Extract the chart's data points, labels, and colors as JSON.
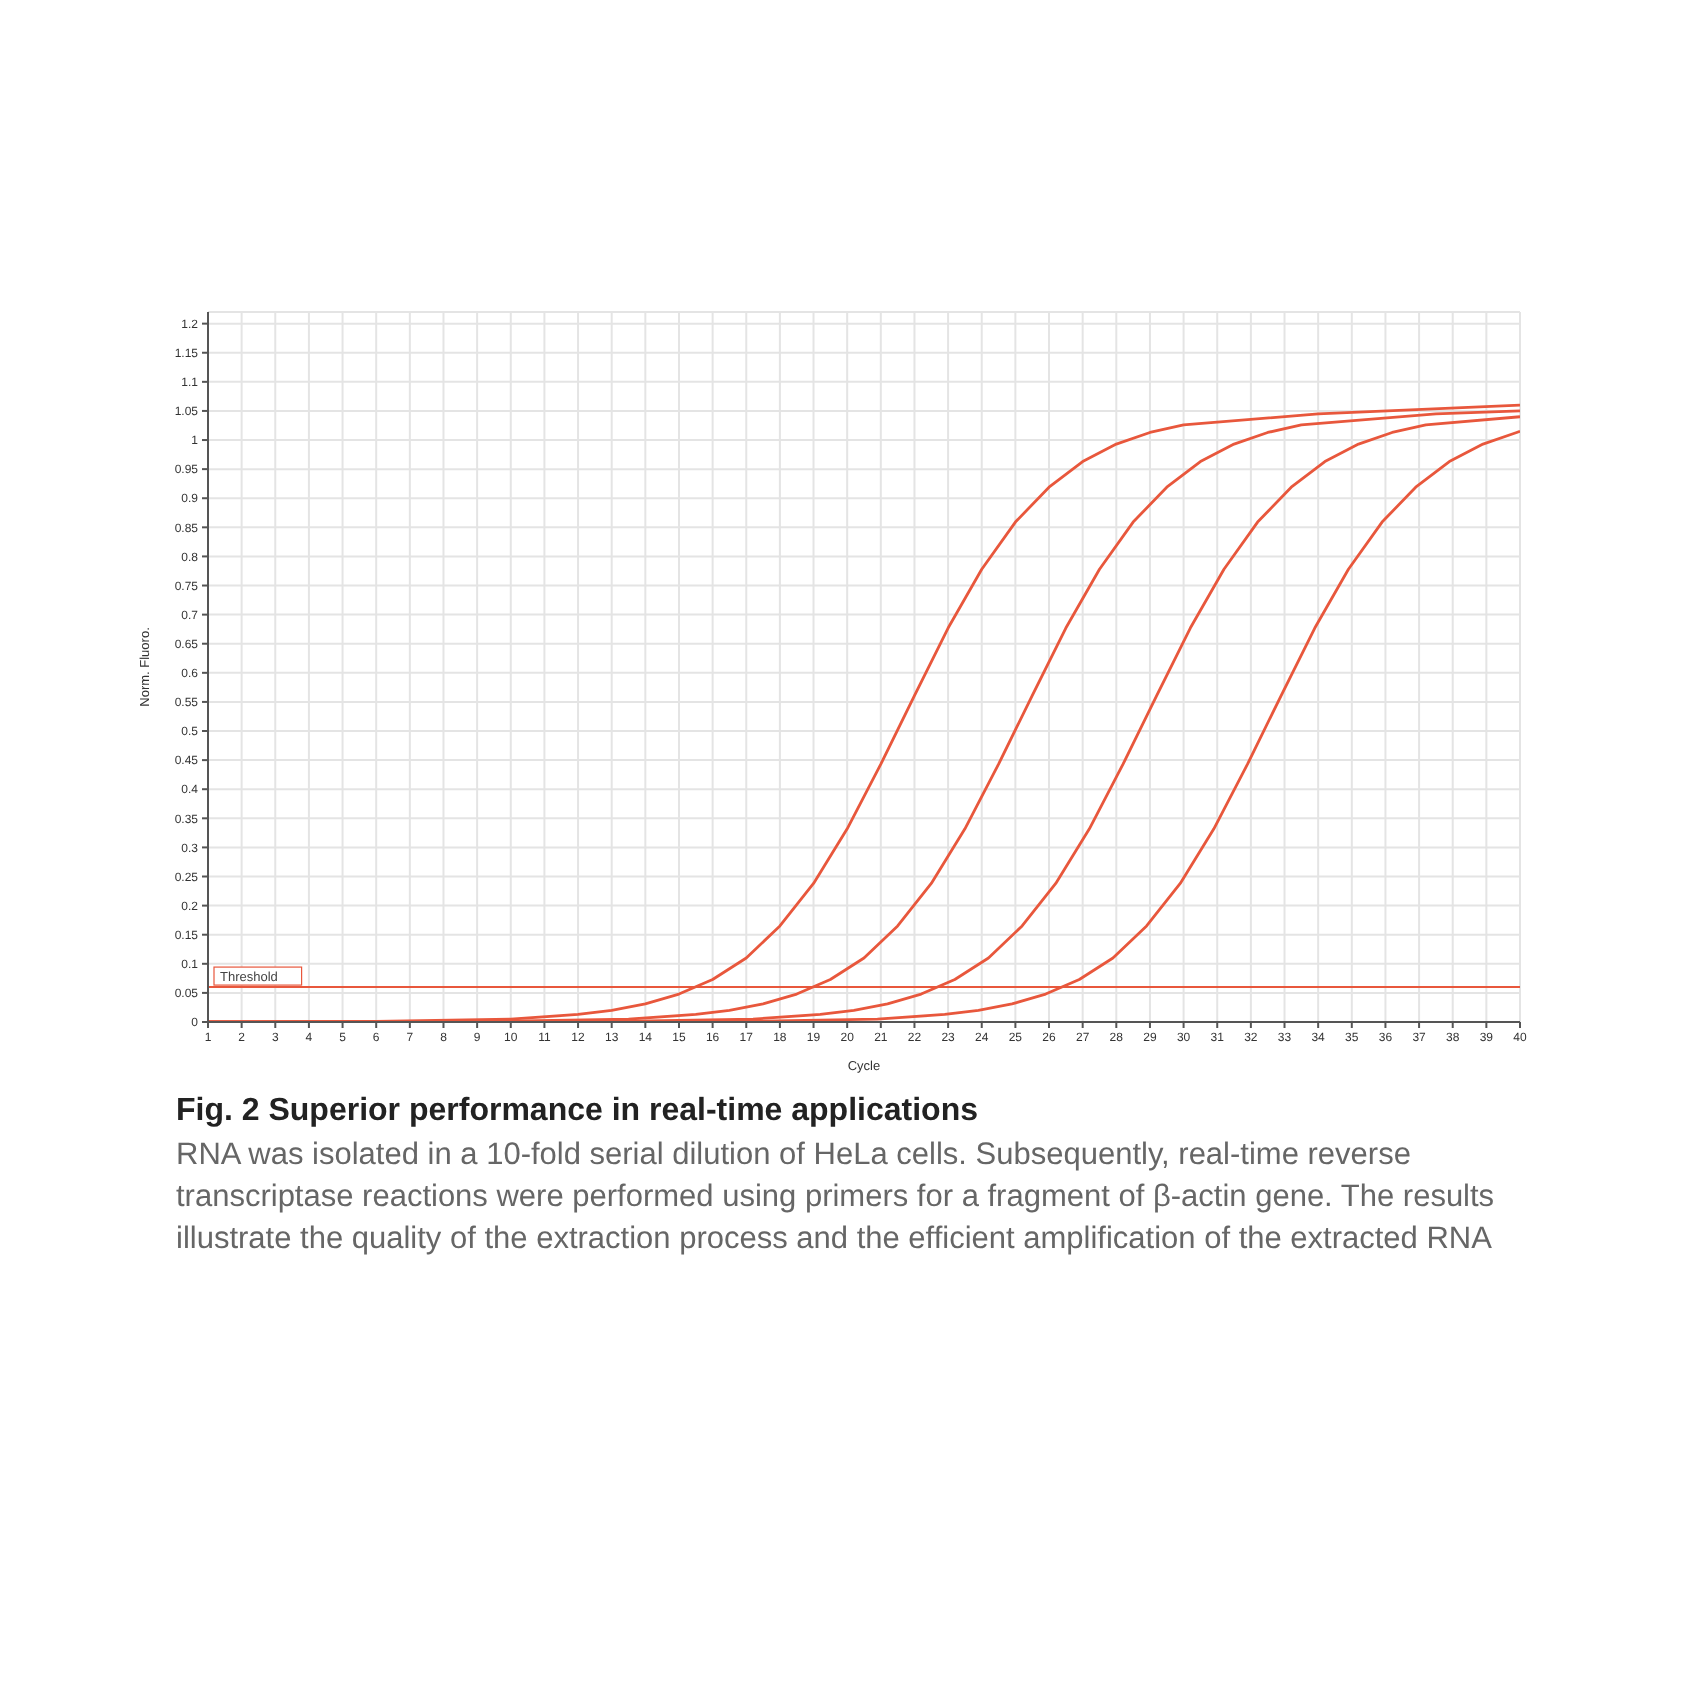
{
  "chart_data": {
    "type": "line",
    "title": "Fig. 2 Superior performance in real-time applications",
    "xlabel": "Cycle",
    "ylabel": "Norm. Fluoro.",
    "annotations": [
      "RNA was isolated in a 10-fold serial dilution of HeLa cells. Subsequently, real-time reverse transcriptase reactions were performed using primers for a fragment of β-actin gene. The results illustrate the quality of the extraction process and the efficient amplification of the extracted RNA"
    ],
    "xlim": [
      1,
      40
    ],
    "xticks": [
      1,
      2,
      3,
      4,
      5,
      6,
      7,
      8,
      9,
      10,
      11,
      12,
      13,
      14,
      15,
      16,
      17,
      18,
      19,
      20,
      21,
      22,
      23,
      24,
      25,
      26,
      27,
      28,
      29,
      30,
      31,
      32,
      33,
      34,
      35,
      36,
      37,
      38,
      39,
      40
    ],
    "ylim": [
      0,
      1.22
    ],
    "yticks": [
      0,
      0.05,
      0.1,
      0.15,
      0.2,
      0.25,
      0.3,
      0.35,
      0.4,
      0.45,
      0.5,
      0.55,
      0.6,
      0.65,
      0.7,
      0.75,
      0.8,
      0.85,
      0.9,
      0.95,
      1,
      1.05,
      1.1,
      1.15,
      1.2
    ],
    "grid": true,
    "legend": false,
    "marker": "none",
    "line_style": "solid",
    "ref_lines": [
      {
        "axis": "y",
        "value": 0.06,
        "label": "Threshold",
        "color": "#e8573c"
      }
    ],
    "series": [
      {
        "color": "#e8573c",
        "x": [
          1,
          6,
          10,
          12,
          13,
          14,
          15,
          16,
          17,
          18,
          19,
          20,
          21,
          22,
          23,
          24,
          25,
          26,
          27,
          28,
          29,
          30,
          34,
          40
        ],
        "values": [
          0,
          0.001,
          0.005,
          0.013,
          0.02,
          0.031,
          0.048,
          0.073,
          0.11,
          0.165,
          0.238,
          0.332,
          0.443,
          0.561,
          0.677,
          0.778,
          0.859,
          0.919,
          0.963,
          0.993,
          1.013,
          1.026,
          1.045,
          1.06
        ]
      },
      {
        "color": "#e8573c",
        "x": [
          1,
          9.5,
          13.5,
          15.5,
          16.5,
          17.5,
          18.5,
          19.5,
          20.5,
          21.5,
          22.5,
          23.5,
          24.5,
          25.5,
          26.5,
          27.5,
          28.5,
          29.5,
          30.5,
          31.5,
          32.5,
          33.5,
          37.5,
          40
        ],
        "values": [
          0,
          0.001,
          0.005,
          0.013,
          0.02,
          0.031,
          0.048,
          0.073,
          0.11,
          0.165,
          0.238,
          0.332,
          0.443,
          0.561,
          0.677,
          0.778,
          0.859,
          0.919,
          0.963,
          0.993,
          1.013,
          1.026,
          1.045,
          1.05
        ]
      },
      {
        "color": "#e8573c",
        "x": [
          1,
          13.2,
          17.2,
          19.2,
          20.2,
          21.2,
          22.2,
          23.2,
          24.2,
          25.2,
          26.2,
          27.2,
          28.2,
          29.2,
          30.2,
          31.2,
          32.2,
          33.2,
          34.2,
          35.2,
          36.2,
          37.2,
          40
        ],
        "values": [
          0,
          0.001,
          0.005,
          0.013,
          0.02,
          0.031,
          0.048,
          0.073,
          0.11,
          0.165,
          0.238,
          0.332,
          0.443,
          0.561,
          0.677,
          0.778,
          0.859,
          0.919,
          0.963,
          0.993,
          1.013,
          1.026,
          1.04
        ]
      },
      {
        "color": "#e8573c",
        "x": [
          1,
          16.9,
          20.9,
          22.9,
          23.9,
          24.9,
          25.9,
          26.9,
          27.9,
          28.9,
          29.9,
          30.9,
          31.9,
          32.9,
          33.9,
          34.9,
          35.9,
          36.9,
          37.9,
          38.9,
          39.9,
          40
        ],
        "values": [
          0,
          0.001,
          0.005,
          0.013,
          0.02,
          0.031,
          0.048,
          0.073,
          0.11,
          0.165,
          0.238,
          0.332,
          0.443,
          0.561,
          0.677,
          0.778,
          0.859,
          0.919,
          0.963,
          0.993,
          1.013,
          1.015
        ]
      }
    ]
  }
}
